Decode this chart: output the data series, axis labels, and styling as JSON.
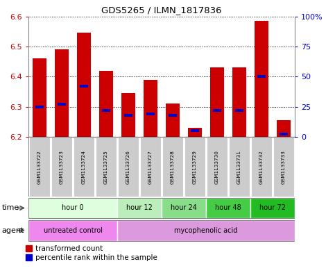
{
  "title": "GDS5265 / ILMN_1817836",
  "samples": [
    "GSM1133722",
    "GSM1133723",
    "GSM1133724",
    "GSM1133725",
    "GSM1133726",
    "GSM1133727",
    "GSM1133728",
    "GSM1133729",
    "GSM1133730",
    "GSM1133731",
    "GSM1133732",
    "GSM1133733"
  ],
  "transformed_count": [
    6.46,
    6.49,
    6.545,
    6.42,
    6.345,
    6.39,
    6.31,
    6.23,
    6.43,
    6.43,
    6.585,
    6.255
  ],
  "percentile_rank": [
    25,
    27,
    42,
    22,
    18,
    19,
    18,
    5,
    22,
    22,
    50,
    2
  ],
  "ymin": 6.2,
  "ymax": 6.6,
  "yticks": [
    6.2,
    6.3,
    6.4,
    6.5,
    6.6
  ],
  "right_yticks": [
    0,
    25,
    50,
    75,
    100
  ],
  "right_yticklabels": [
    "0",
    "25",
    "50",
    "75",
    "100%"
  ],
  "bar_color": "#cc0000",
  "percentile_color": "#0000cc",
  "bar_width": 0.6,
  "time_groups": [
    {
      "label": "hour 0",
      "start": 0,
      "end": 3,
      "color": "#ddffdd"
    },
    {
      "label": "hour 12",
      "start": 4,
      "end": 5,
      "color": "#bbeebb"
    },
    {
      "label": "hour 24",
      "start": 6,
      "end": 7,
      "color": "#88dd88"
    },
    {
      "label": "hour 48",
      "start": 8,
      "end": 9,
      "color": "#44cc44"
    },
    {
      "label": "hour 72",
      "start": 10,
      "end": 11,
      "color": "#22bb22"
    }
  ],
  "agent_groups": [
    {
      "label": "untreated control",
      "start": 0,
      "end": 3,
      "color": "#ee88ee"
    },
    {
      "label": "mycophenolic acid",
      "start": 4,
      "end": 11,
      "color": "#dd99dd"
    }
  ],
  "plot_bg": "#ffffff",
  "tick_color_left": "#cc0000",
  "tick_color_right": "#0000cc",
  "sample_box_color": "#cccccc",
  "border_color": "#888888"
}
